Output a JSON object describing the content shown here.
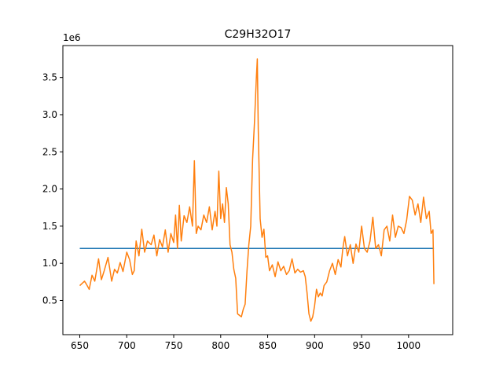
{
  "chart_data": {
    "type": "line",
    "title": "C29H32O17",
    "xlabel": "",
    "ylabel": "",
    "y_offset_text": "1e6",
    "xlim": [
      632,
      1047
    ],
    "ylim": [
      40000,
      3930000
    ],
    "x_ticks": [
      650,
      700,
      750,
      800,
      850,
      900,
      950,
      1000
    ],
    "y_ticks": [
      500000,
      1000000,
      1500000,
      2000000,
      2500000,
      3000000,
      3500000
    ],
    "y_tick_labels": [
      "0.5",
      "1.0",
      "1.5",
      "2.0",
      "2.5",
      "3.0",
      "3.5"
    ],
    "grid": false,
    "series": [
      {
        "color": "#1f77b4",
        "x": [
          650,
          1027
        ],
        "y": [
          1200000,
          1200000
        ]
      },
      {
        "color": "#ff7f0e",
        "x": [
          650,
          655,
          657,
          660,
          663,
          666,
          670,
          673,
          676,
          680,
          684,
          687,
          690,
          693,
          696,
          700,
          703,
          706,
          708,
          710,
          713,
          716,
          719,
          722,
          726,
          729,
          732,
          735,
          738,
          741,
          744,
          747,
          750,
          752,
          754,
          756,
          758,
          761,
          764,
          767,
          770,
          772,
          774,
          776,
          779,
          782,
          785,
          788,
          791,
          794,
          796,
          798,
          800,
          802,
          804,
          806,
          808,
          810,
          812,
          814,
          816,
          818,
          820,
          822,
          824,
          826,
          828,
          830,
          832,
          834,
          836,
          838,
          839,
          840,
          842,
          844,
          846,
          848,
          850,
          852,
          855,
          858,
          861,
          864,
          867,
          870,
          873,
          876,
          879,
          882,
          885,
          888,
          890,
          892,
          894,
          896,
          898,
          900,
          902,
          904,
          906,
          908,
          910,
          913,
          916,
          919,
          922,
          925,
          928,
          930,
          932,
          935,
          938,
          941,
          944,
          947,
          950,
          953,
          956,
          959,
          962,
          965,
          968,
          971,
          974,
          977,
          980,
          983,
          986,
          989,
          992,
          995,
          998,
          1001,
          1004,
          1007,
          1010,
          1013,
          1016,
          1019,
          1022,
          1024,
          1026,
          1027
        ],
        "y": [
          700000,
          760000,
          720000,
          650000,
          840000,
          760000,
          1060000,
          780000,
          900000,
          1080000,
          760000,
          920000,
          870000,
          1010000,
          890000,
          1150000,
          1050000,
          850000,
          900000,
          1300000,
          1100000,
          1460000,
          1150000,
          1300000,
          1250000,
          1380000,
          1100000,
          1320000,
          1220000,
          1450000,
          1150000,
          1400000,
          1280000,
          1650000,
          1200000,
          1780000,
          1300000,
          1640000,
          1550000,
          1760000,
          1500000,
          2380000,
          1400000,
          1500000,
          1450000,
          1650000,
          1550000,
          1760000,
          1450000,
          1700000,
          1500000,
          2240000,
          1600000,
          1800000,
          1550000,
          2020000,
          1800000,
          1250000,
          1150000,
          920000,
          800000,
          320000,
          300000,
          280000,
          380000,
          450000,
          900000,
          1250000,
          1500000,
          2400000,
          2900000,
          3500000,
          3750000,
          2800000,
          1600000,
          1350000,
          1460000,
          1080000,
          1100000,
          900000,
          980000,
          820000,
          1020000,
          900000,
          960000,
          850000,
          900000,
          1060000,
          870000,
          920000,
          880000,
          900000,
          820000,
          600000,
          320000,
          220000,
          280000,
          430000,
          650000,
          550000,
          600000,
          560000,
          700000,
          750000,
          900000,
          1000000,
          850000,
          1050000,
          950000,
          1200000,
          1360000,
          1100000,
          1250000,
          1000000,
          1260000,
          1150000,
          1500000,
          1200000,
          1150000,
          1300000,
          1620000,
          1200000,
          1250000,
          1100000,
          1450000,
          1500000,
          1300000,
          1650000,
          1350000,
          1500000,
          1480000,
          1400000,
          1580000,
          1900000,
          1850000,
          1650000,
          1800000,
          1550000,
          1890000,
          1600000,
          1700000,
          1400000,
          1450000,
          720000
        ]
      }
    ]
  }
}
